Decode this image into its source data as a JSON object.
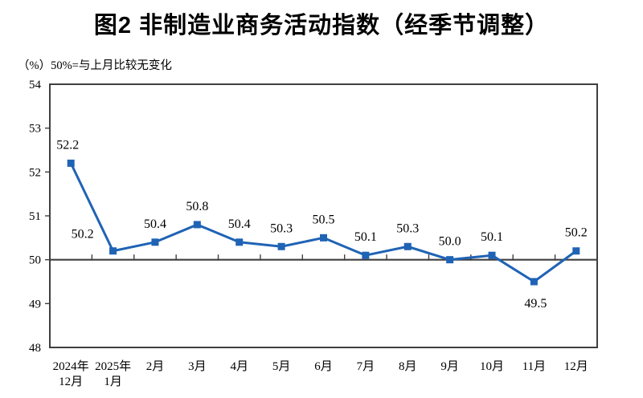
{
  "title": "图2  非制造业商务活动指数（经季节调整）",
  "unit_note": "（%）50%=与上月比较无变化",
  "chart_data": {
    "type": "line",
    "title": "图2 非制造业商务活动指数（经季节调整）",
    "subtitle": "（%）50%=与上月比较无变化",
    "categories": [
      "2024年12月",
      "2025年1月",
      "2月",
      "3月",
      "4月",
      "5月",
      "6月",
      "7月",
      "8月",
      "9月",
      "10月",
      "11月",
      "12月"
    ],
    "category_label_lines": [
      [
        "2024年",
        "12月"
      ],
      [
        "2025年",
        "1月"
      ],
      [
        "2月"
      ],
      [
        "3月"
      ],
      [
        "4月"
      ],
      [
        "5月"
      ],
      [
        "6月"
      ],
      [
        "7月"
      ],
      [
        "8月"
      ],
      [
        "9月"
      ],
      [
        "10月"
      ],
      [
        "11月"
      ],
      [
        "12月"
      ]
    ],
    "series": [
      {
        "name": "非制造业商务活动指数",
        "values": [
          52.2,
          50.2,
          50.4,
          50.8,
          50.4,
          50.3,
          50.5,
          50.1,
          50.3,
          50.0,
          50.1,
          49.5,
          50.2
        ]
      }
    ],
    "data_labels": [
      "52.2",
      "50.2",
      "50.4",
      "50.8",
      "50.4",
      "50.3",
      "50.5",
      "50.1",
      "50.3",
      "50.0",
      "50.1",
      "49.5",
      "50.2"
    ],
    "ylim": [
      48,
      54
    ],
    "yticks": [
      48,
      49,
      50,
      51,
      52,
      53,
      54
    ],
    "reference_line_y": 50,
    "grid": "off",
    "legend": "off",
    "marker": "square",
    "colors": {
      "series": "#1f63b5",
      "axis": "#3f3f3f",
      "text": "#000000",
      "background": "#ffffff"
    },
    "label_offsets": {
      "0": [
        -4,
        -18
      ],
      "1": [
        -38,
        -16
      ],
      "11": [
        2,
        32
      ]
    },
    "default_label_offset": [
      0,
      -18
    ]
  }
}
